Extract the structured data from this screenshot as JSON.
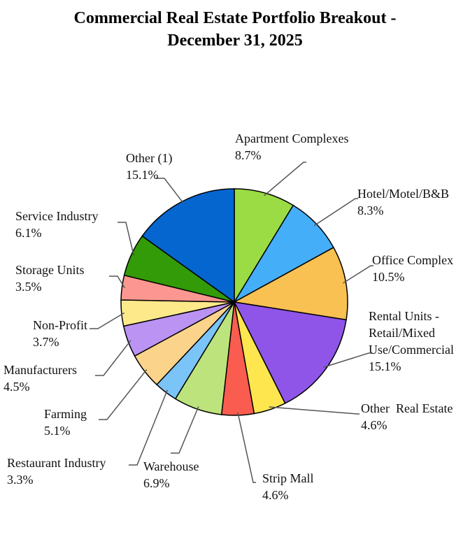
{
  "chart_data": {
    "type": "pie",
    "title": "Commercial Real Estate Portfolio Breakout - December 31, 2025",
    "categories": [
      "Apartment Complexes",
      "Hotel/Motel/B&B",
      "Office Complex",
      "Rental Units - Retail/Mixed Use/Commercial",
      "Other  Real Estate",
      "Strip Mall",
      "Warehouse",
      "Restaurant Industry",
      "Farming",
      "Manufacturers",
      "Non-Profit",
      "Storage Units",
      "Service Industry",
      "Other (1)"
    ],
    "values": [
      8.7,
      8.3,
      10.5,
      15.1,
      4.6,
      4.6,
      6.9,
      3.3,
      5.1,
      4.5,
      3.7,
      3.5,
      6.1,
      15.1
    ],
    "value_labels": [
      "8.7%",
      "8.3%",
      "10.5%",
      "15.1%",
      "4.6%",
      "4.6%",
      "6.9%",
      "3.3%",
      "5.1%",
      "4.5%",
      "3.7%",
      "3.5%",
      "6.1%",
      "15.1%"
    ],
    "colors": [
      "#9bdc45",
      "#45aef8",
      "#f9c052",
      "#8e55e8",
      "#fde64e",
      "#fb5c50",
      "#bde47c",
      "#7ac4f8",
      "#fcd38b",
      "#bb93f3",
      "#fde98a",
      "#fb9790",
      "#339a08",
      "#0566d0"
    ]
  }
}
